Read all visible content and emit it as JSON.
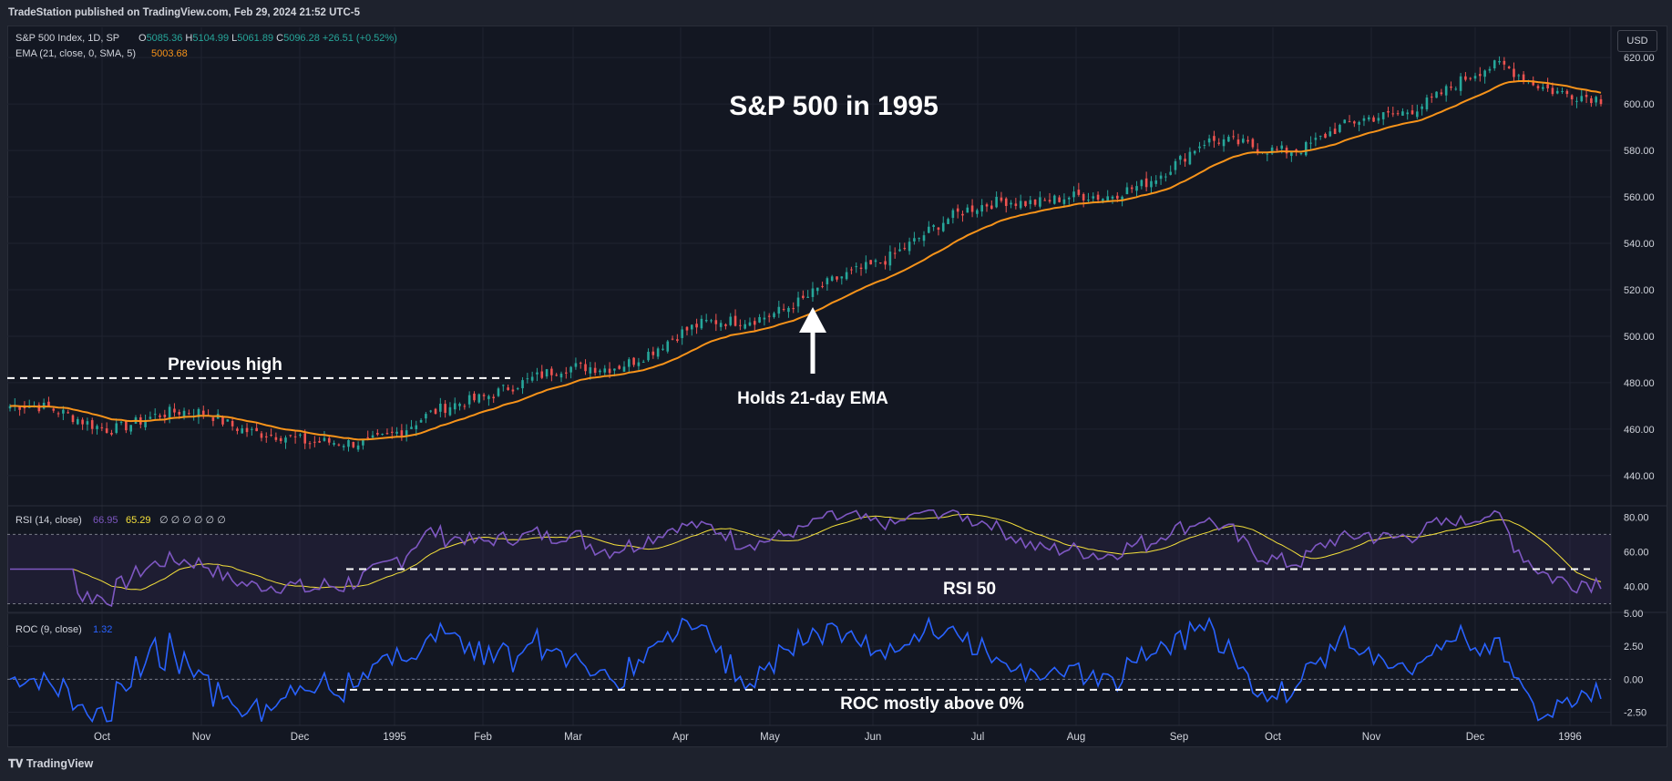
{
  "header": {
    "publisher_line": "TradeStation published on TradingView.com, Feb 29, 2024 21:52 UTC-5"
  },
  "footer": {
    "brand": "TradingView"
  },
  "toolbar": {
    "currency_button": "USD"
  },
  "legend": {
    "symbol": "S&P 500 Index, 1D, SP",
    "ohlc": [
      {
        "label": "O",
        "value": "5085.36"
      },
      {
        "label": "H",
        "value": "5104.99"
      },
      {
        "label": "L",
        "value": "5061.89"
      },
      {
        "label": "C",
        "value": "5096.28"
      }
    ],
    "change": "+26.51 (+0.52%)",
    "ema_label": "EMA (21, close, 0, SMA, 5)",
    "ema_value": "5003.68",
    "rsi_label": "RSI (14, close)",
    "rsi_value": "66.95",
    "rsi_ma_value": "65.29",
    "rsi_empty_values": "∅ ∅ ∅ ∅ ∅ ∅",
    "roc_label": "ROC (9, close)",
    "roc_value": "1.32"
  },
  "colors": {
    "background": "#131722",
    "up_candle": "#26a69a",
    "down_candle": "#ef5350",
    "ema": "#f7931a",
    "rsi_line": "#7e57c2",
    "rsi_ma": "#f5e13b",
    "roc_line": "#2962ff",
    "annotation": "#ffffff"
  },
  "annotations": {
    "title": "S&P 500 in 1995",
    "previous_high": "Previous high",
    "holds_ema": "Holds 21-day EMA",
    "rsi_50": "RSI 50",
    "roc_above": "ROC mostly above 0%"
  },
  "chart_data": [
    {
      "type": "candlestick",
      "title": "S&P 500 in 1995",
      "price_axis_ticks": [
        "620.00",
        "600.00",
        "580.00",
        "560.00",
        "540.00",
        "520.00",
        "500.00",
        "480.00",
        "460.00",
        "440.00"
      ],
      "time_axis_labels": [
        "Oct",
        "Nov",
        "Dec",
        "1995",
        "Feb",
        "Mar",
        "Apr",
        "May",
        "Jun",
        "Jul",
        "Aug",
        "Sep",
        "Oct",
        "Nov",
        "Dec",
        "1996"
      ],
      "ylim": [
        427,
        633
      ],
      "previous_high_level": 482,
      "close_anchors": [
        {
          "date": "Sep 1994",
          "close": 470
        },
        {
          "date": "Oct 1994",
          "close": 462
        },
        {
          "date": "Nov 1994",
          "close": 467
        },
        {
          "date": "Dec 1994",
          "close": 452
        },
        {
          "date": "Jan 1995",
          "close": 460
        },
        {
          "date": "Feb 1995",
          "close": 480
        },
        {
          "date": "Mar 1995",
          "close": 487
        },
        {
          "date": "Apr 1995",
          "close": 504
        },
        {
          "date": "May 1995",
          "close": 515
        },
        {
          "date": "Jun 1995",
          "close": 540
        },
        {
          "date": "Jul 1995",
          "close": 560
        },
        {
          "date": "Aug 1995",
          "close": 558
        },
        {
          "date": "Sep 1995",
          "close": 582
        },
        {
          "date": "Oct 1995",
          "close": 582
        },
        {
          "date": "Nov 1995",
          "close": 598
        },
        {
          "date": "Dec 1995",
          "close": 616
        },
        {
          "date": "Jan 1996",
          "close": 600
        }
      ],
      "series": [
        {
          "name": "EMA (21, close, 0, SMA, 5)",
          "last": "5003.68"
        }
      ]
    },
    {
      "type": "line",
      "title": "RSI (14, close)",
      "y_ticks": [
        "80.00",
        "60.00",
        "40.00"
      ],
      "ylim": [
        25,
        86
      ],
      "bands": [
        70,
        50,
        30
      ],
      "series": [
        {
          "name": "RSI",
          "last": "66.95"
        },
        {
          "name": "RSI MA",
          "last": "65.29"
        }
      ]
    },
    {
      "type": "line",
      "title": "ROC (9, close)",
      "y_ticks": [
        "5.00",
        "2.50",
        "0.00",
        "-2.50"
      ],
      "ylim": [
        -3.5,
        5.0
      ],
      "zero_line": 0,
      "series": [
        {
          "name": "ROC",
          "last": "1.32"
        }
      ]
    }
  ]
}
